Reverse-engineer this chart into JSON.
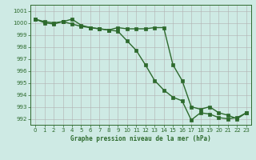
{
  "series1": [
    1000.3,
    1000.1,
    1000.0,
    1000.1,
    1000.3,
    999.8,
    999.6,
    999.5,
    999.4,
    999.3,
    998.5,
    997.7,
    996.5,
    995.2,
    994.4,
    993.8,
    993.5,
    991.9,
    992.5,
    992.4,
    992.1,
    992.0,
    992.1,
    992.5
  ],
  "series2": [
    1000.3,
    1000.0,
    999.9,
    1000.1,
    999.9,
    999.7,
    999.6,
    999.5,
    999.4,
    999.6,
    999.5,
    999.5,
    999.5,
    999.6,
    999.6,
    996.5,
    995.2,
    993.0,
    992.8,
    993.0,
    992.5,
    992.3,
    992.0,
    992.5
  ],
  "x": [
    0,
    1,
    2,
    3,
    4,
    5,
    6,
    7,
    8,
    9,
    10,
    11,
    12,
    13,
    14,
    15,
    16,
    17,
    18,
    19,
    20,
    21,
    22,
    23
  ],
  "ylim": [
    991.5,
    1001.5
  ],
  "yticks": [
    992,
    993,
    994,
    995,
    996,
    997,
    998,
    999,
    1000,
    1001
  ],
  "xticks": [
    0,
    1,
    2,
    3,
    4,
    5,
    6,
    7,
    8,
    9,
    10,
    11,
    12,
    13,
    14,
    15,
    16,
    17,
    18,
    19,
    20,
    21,
    22,
    23
  ],
  "xlabel": "Graphe pression niveau de la mer (hPa)",
  "line_color": "#2d6a2d",
  "bg_color": "#ceeae4",
  "grid_color": "#b0b0b0",
  "marker": "s",
  "markersize": 2.2,
  "linewidth": 1.0
}
